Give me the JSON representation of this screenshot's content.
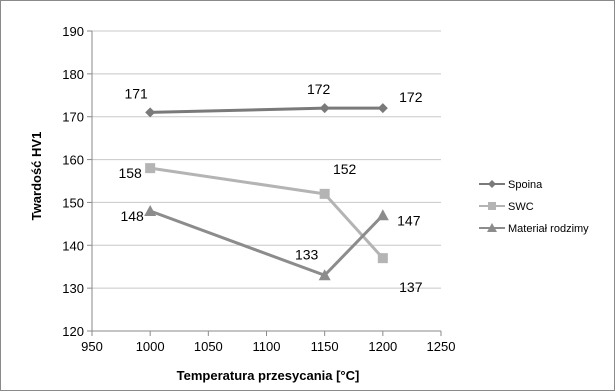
{
  "chart_data": {
    "type": "line",
    "xlabel": "Temperatura przesycania [°C]",
    "ylabel": "Twardość HV1",
    "xlim": [
      950,
      1250
    ],
    "ylim": [
      120,
      190
    ],
    "xticks": [
      950,
      1000,
      1050,
      1100,
      1150,
      1200,
      1250
    ],
    "yticks": [
      120,
      130,
      140,
      150,
      160,
      170,
      180,
      190
    ],
    "grid": "horizontal",
    "legend_position": "right",
    "series": [
      {
        "name": "Spoina",
        "marker": "diamond",
        "color": "#7a7a7a",
        "x": [
          1000,
          1150,
          1200
        ],
        "y": [
          171,
          172,
          172
        ],
        "labels": [
          "171",
          "172",
          "172"
        ]
      },
      {
        "name": "SWC",
        "marker": "square",
        "color": "#b4b4b4",
        "x": [
          1000,
          1150,
          1200
        ],
        "y": [
          158,
          152,
          137
        ],
        "labels": [
          "158",
          "152",
          "137"
        ]
      },
      {
        "name": "Materiał rodzimy",
        "marker": "triangle",
        "color": "#8c8c8c",
        "x": [
          1000,
          1150,
          1200
        ],
        "y": [
          148,
          133,
          147
        ],
        "labels": [
          "148",
          "133",
          "147"
        ]
      }
    ]
  }
}
